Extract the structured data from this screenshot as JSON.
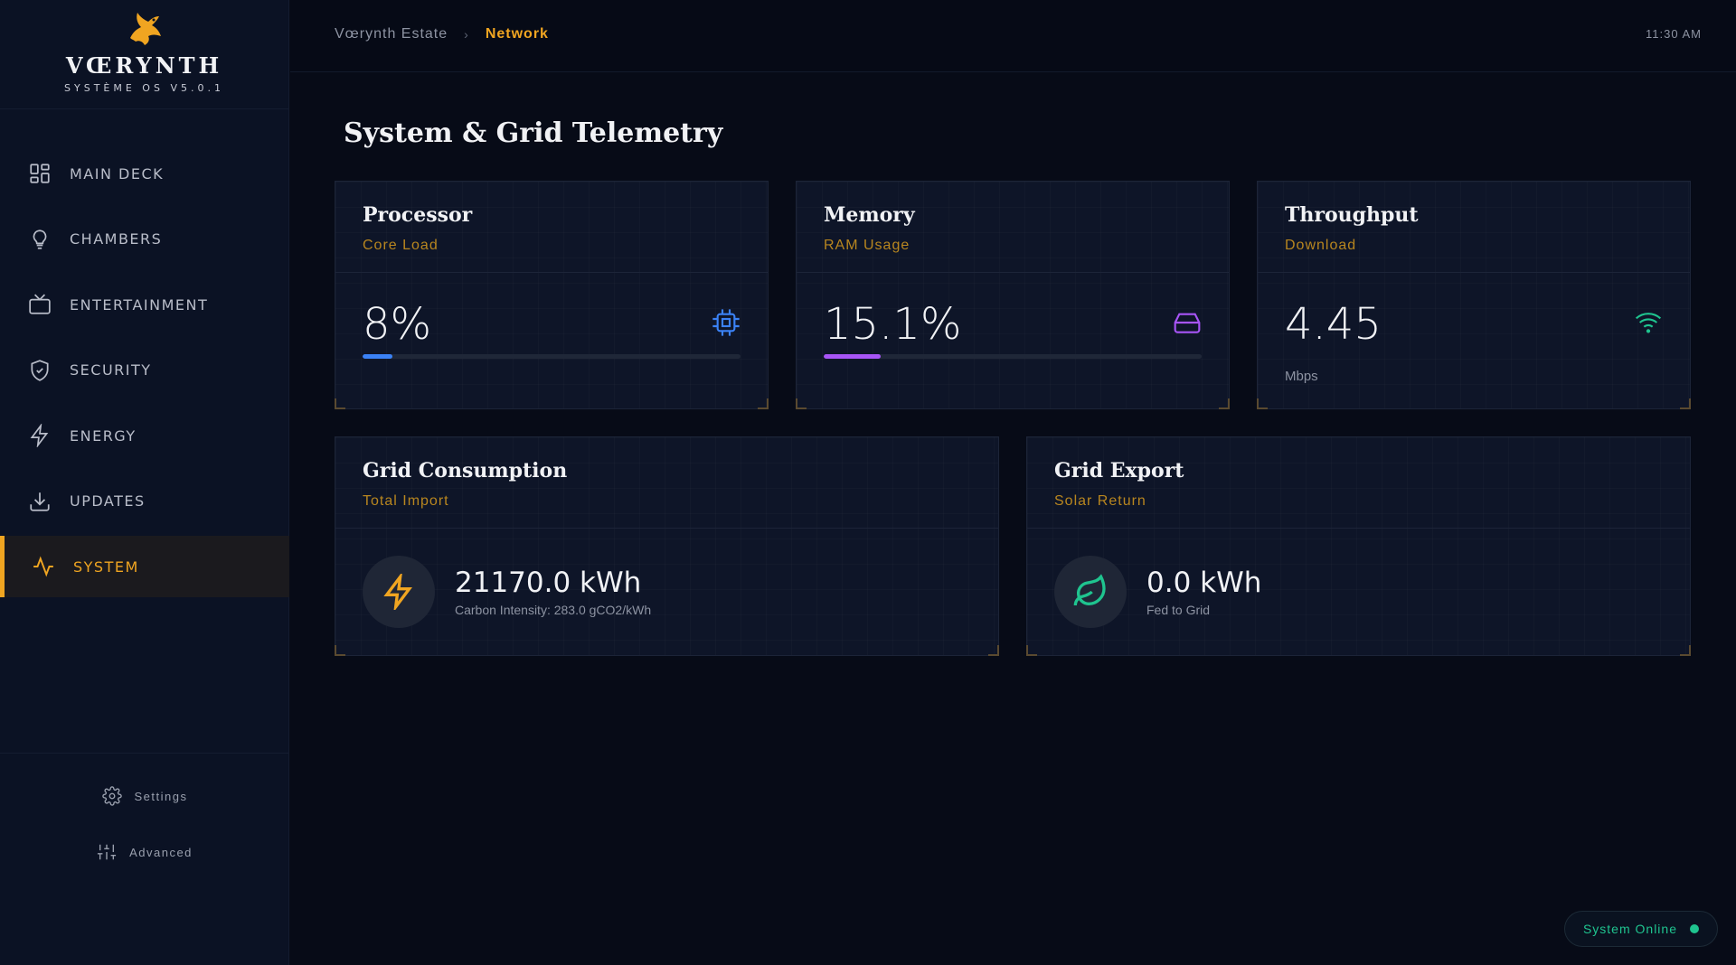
{
  "brand": {
    "name": "VŒRYNTH",
    "subtitle": "SYSTÈME OS V5.0.1",
    "logo_icon": "griffin-icon",
    "accent": "#f0a521"
  },
  "sidebar": {
    "items": [
      {
        "label": "MAIN DECK",
        "icon": "grid-icon",
        "active": false
      },
      {
        "label": "CHAMBERS",
        "icon": "lightbulb-icon",
        "active": false
      },
      {
        "label": "ENTERTAINMENT",
        "icon": "tv-icon",
        "active": false
      },
      {
        "label": "SECURITY",
        "icon": "shield-icon",
        "active": false
      },
      {
        "label": "ENERGY",
        "icon": "bolt-icon",
        "active": false
      },
      {
        "label": "UPDATES",
        "icon": "download-icon",
        "active": false
      },
      {
        "label": "SYSTEM",
        "icon": "pulse-icon",
        "active": true
      }
    ],
    "footer": {
      "settings_label": "Settings",
      "advanced_label": "Advanced"
    }
  },
  "topbar": {
    "breadcrumb": [
      "Vœrynth Estate",
      "Network"
    ],
    "time": "11:30 AM"
  },
  "main": {
    "title": "System & Grid Telemetry",
    "cards": {
      "processor": {
        "title": "Processor",
        "subtitle": "Core Load",
        "value": "8%",
        "progress": 0.08,
        "icon": "cpu-icon",
        "color": "#3b82f6"
      },
      "memory": {
        "title": "Memory",
        "subtitle": "RAM Usage",
        "value": "15.1%",
        "progress": 0.151,
        "icon": "drive-icon",
        "color": "#a855f7"
      },
      "throughput": {
        "title": "Throughput",
        "subtitle": "Download",
        "value": "4.45",
        "unit": "Mbps",
        "icon": "wifi-icon",
        "color": "#1fc48f"
      },
      "grid_consumption": {
        "title": "Grid Consumption",
        "subtitle": "Total Import",
        "value": "21170.0 kWh",
        "note": "Carbon Intensity: 283.0 gCO2/kWh",
        "icon": "bolt-icon",
        "color": "#f0a521"
      },
      "grid_export": {
        "title": "Grid Export",
        "subtitle": "Solar Return",
        "value": "0.0 kWh",
        "note": "Fed to Grid",
        "icon": "leaf-icon",
        "color": "#1fc48f"
      }
    }
  },
  "status": {
    "label": "System Online",
    "color": "#1fc48f"
  }
}
